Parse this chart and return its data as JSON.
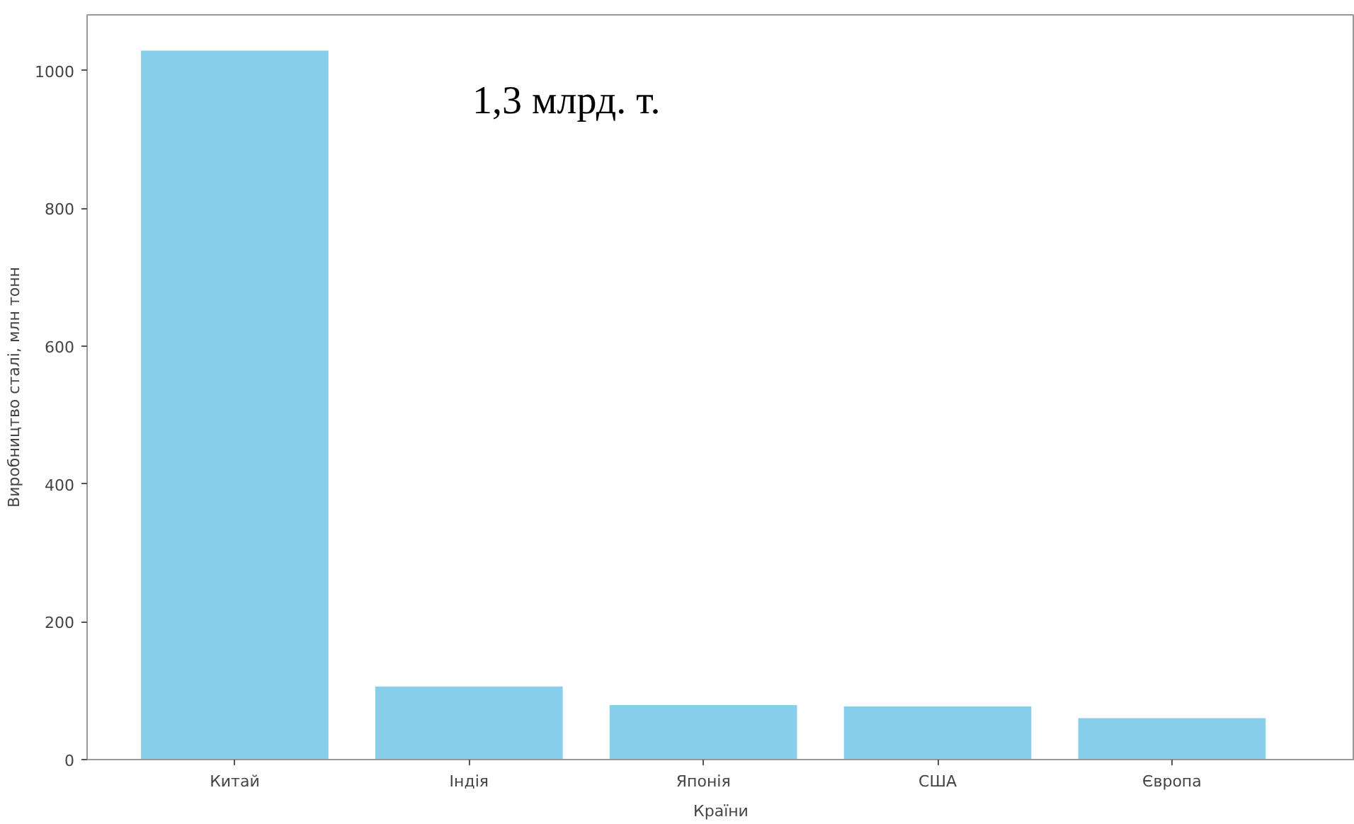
{
  "chart_data": {
    "type": "bar",
    "xlabel": "Країни",
    "ylabel": "Виробництво сталі, млн тонн",
    "categories": [
      "Китай",
      "Індія",
      "Японія",
      "США",
      "Європа"
    ],
    "values": [
      1029,
      106,
      79,
      77,
      60
    ],
    "color": "#87ceeb",
    "ylim": [
      0,
      1081
    ],
    "yticks": [
      0,
      200,
      400,
      600,
      800,
      1000
    ],
    "grid": false,
    "annotations": [
      "1,3 млрд. т."
    ]
  }
}
